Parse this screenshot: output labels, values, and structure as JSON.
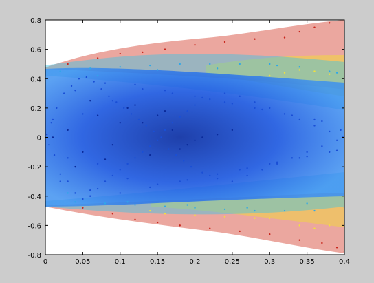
{
  "figure": {
    "background": "#cccccc",
    "axes_background": "#ffffff"
  },
  "chart_data": {
    "type": "scatter",
    "title": "",
    "xlabel": "",
    "ylabel": "",
    "xlim": [
      0,
      0.4
    ],
    "ylim": [
      -0.8,
      0.8
    ],
    "grid": false,
    "legend": "none",
    "colormap": "jet",
    "x_ticks": [
      {
        "value": 0,
        "label": "0"
      },
      {
        "value": 0.05,
        "label": "0.05"
      },
      {
        "value": 0.1,
        "label": "0.1"
      },
      {
        "value": 0.15,
        "label": "0.15"
      },
      {
        "value": 0.2,
        "label": "0.2"
      },
      {
        "value": 0.25,
        "label": "0.25"
      },
      {
        "value": 0.3,
        "label": "0.3"
      },
      {
        "value": 0.35,
        "label": "0.35"
      },
      {
        "value": 0.4,
        "label": "0.4"
      }
    ],
    "y_ticks": [
      {
        "value": -0.8,
        "label": "-0.8"
      },
      {
        "value": -0.6,
        "label": "-0.6"
      },
      {
        "value": -0.4,
        "label": "-0.4"
      },
      {
        "value": -0.2,
        "label": "-0.2"
      },
      {
        "value": 0,
        "label": "0"
      },
      {
        "value": 0.2,
        "label": "0.2"
      },
      {
        "value": 0.4,
        "label": "0.4"
      },
      {
        "value": 0.6,
        "label": "0.6"
      },
      {
        "value": 0.8,
        "label": "0.8"
      }
    ],
    "series": [
      {
        "color": "#1a4fd6",
        "x": [
          0.002,
          0.005,
          0.008,
          0.012,
          0.015,
          0.02,
          0.025,
          0.03,
          0.035,
          0.04,
          0.045,
          0.05,
          0.055,
          0.06,
          0.065,
          0.07,
          0.075,
          0.08,
          0.085,
          0.09,
          0.095,
          0.1,
          0.105,
          0.11,
          0.115,
          0.12,
          0.125,
          0.13,
          0.135,
          0.14,
          0.145,
          0.15,
          0.155,
          0.16,
          0.165,
          0.17,
          0.175,
          0.18,
          0.185,
          0.19,
          0.195,
          0.2,
          0.21,
          0.22,
          0.23,
          0.24,
          0.25,
          0.26,
          0.27,
          0.28,
          0.29,
          0.3,
          0.31,
          0.32,
          0.33,
          0.34,
          0.35,
          0.36,
          0.37,
          0.38,
          0.39,
          0.398,
          0.01,
          0.03,
          0.05,
          0.07,
          0.09,
          0.11,
          0.13,
          0.15,
          0.17,
          0.19,
          0.21,
          0.23,
          0.25,
          0.27,
          0.29,
          0.31,
          0.33,
          0.35,
          0.37,
          0.39,
          0.02,
          0.04,
          0.06,
          0.08,
          0.1,
          0.12,
          0.14,
          0.16,
          0.18,
          0.2,
          0.22,
          0.24,
          0.26,
          0.28,
          0.3,
          0.32,
          0.34,
          0.36,
          0.38,
          0.395
        ],
        "y": [
          0.02,
          -0.05,
          0.1,
          -0.12,
          0.2,
          -0.25,
          0.3,
          -0.3,
          0.35,
          -0.38,
          0.4,
          -0.42,
          0.41,
          -0.4,
          0.38,
          -0.35,
          0.33,
          -0.3,
          0.28,
          -0.26,
          0.24,
          -0.22,
          0.2,
          -0.18,
          0.16,
          -0.14,
          0.12,
          -0.1,
          0.08,
          -0.06,
          0.04,
          -0.02,
          0.0,
          0.05,
          -0.08,
          0.1,
          -0.12,
          0.14,
          -0.16,
          0.18,
          -0.2,
          0.22,
          -0.24,
          0.26,
          -0.28,
          0.3,
          -0.3,
          0.28,
          -0.26,
          0.24,
          -0.22,
          0.2,
          -0.18,
          0.16,
          -0.14,
          0.12,
          -0.1,
          0.08,
          -0.06,
          0.04,
          -0.02,
          0.0,
          0.12,
          -0.14,
          0.16,
          -0.18,
          0.25,
          -0.28,
          0.33,
          -0.32,
          0.3,
          -0.29,
          0.27,
          -0.25,
          0.23,
          -0.21,
          0.19,
          -0.17,
          0.15,
          -0.13,
          0.11,
          -0.09,
          -0.3,
          0.32,
          -0.36,
          0.37,
          -0.38,
          0.36,
          -0.34,
          0.32,
          -0.3,
          0.28,
          -0.26,
          0.24,
          -0.22,
          0.2,
          -0.18,
          0.16,
          -0.14,
          0.12,
          -0.1,
          0.05
        ]
      },
      {
        "color": "#0a2a9a",
        "x": [
          0.01,
          0.03,
          0.05,
          0.07,
          0.09,
          0.11,
          0.13,
          0.15,
          0.17,
          0.19,
          0.21,
          0.23,
          0.25,
          0.04,
          0.06,
          0.08,
          0.1,
          0.12,
          0.14,
          0.16,
          0.18,
          0.2
        ],
        "y": [
          0.0,
          0.05,
          -0.1,
          0.15,
          -0.05,
          0.2,
          0.1,
          0.15,
          0.05,
          -0.05,
          0.0,
          0.02,
          0.05,
          -0.2,
          0.25,
          -0.15,
          0.1,
          0.22,
          -0.12,
          0.18,
          -0.08,
          -0.02
        ]
      },
      {
        "color": "#2fa8e8",
        "x": [
          0.02,
          0.04,
          0.06,
          0.08,
          0.1,
          0.12,
          0.14,
          0.16,
          0.18,
          0.2,
          0.22,
          0.24,
          0.26,
          0.28,
          0.3,
          0.32,
          0.34,
          0.36,
          0.38,
          0.4,
          0.03,
          0.07,
          0.11,
          0.15,
          0.19,
          0.23,
          0.27,
          0.31,
          0.35,
          0.39
        ],
        "y": [
          0.45,
          -0.44,
          0.47,
          -0.45,
          0.48,
          -0.46,
          0.49,
          -0.47,
          0.5,
          -0.48,
          0.5,
          -0.49,
          0.5,
          -0.5,
          0.5,
          -0.5,
          0.48,
          -0.5,
          0.45,
          -0.48,
          -0.38,
          0.42,
          -0.44,
          0.46,
          -0.46,
          0.47,
          -0.48,
          0.49,
          -0.45,
          0.44
        ]
      },
      {
        "color": "#f3e13a",
        "x": [
          0.14,
          0.16,
          0.2,
          0.24,
          0.28,
          0.3,
          0.32,
          0.34,
          0.36,
          0.38,
          0.4,
          0.3,
          0.34,
          0.36,
          0.38,
          0.4
        ],
        "y": [
          -0.5,
          -0.52,
          -0.53,
          -0.54,
          -0.55,
          0.42,
          0.44,
          0.46,
          0.45,
          0.43,
          0.5,
          -0.55,
          -0.6,
          -0.62,
          -0.6,
          -0.58
        ]
      },
      {
        "color": "#c8261c",
        "x": [
          0.03,
          0.07,
          0.1,
          0.13,
          0.16,
          0.2,
          0.24,
          0.28,
          0.32,
          0.34,
          0.36,
          0.38,
          0.4,
          0.05,
          0.09,
          0.12,
          0.15,
          0.18,
          0.22,
          0.26,
          0.3,
          0.34,
          0.37,
          0.39,
          0.4
        ],
        "y": [
          0.5,
          0.54,
          0.57,
          0.58,
          0.6,
          0.63,
          0.65,
          0.67,
          0.68,
          0.72,
          0.75,
          0.78,
          0.8,
          -0.48,
          -0.52,
          -0.56,
          -0.58,
          -0.6,
          -0.62,
          -0.64,
          -0.66,
          -0.7,
          -0.72,
          -0.75,
          -0.78
        ]
      }
    ]
  }
}
